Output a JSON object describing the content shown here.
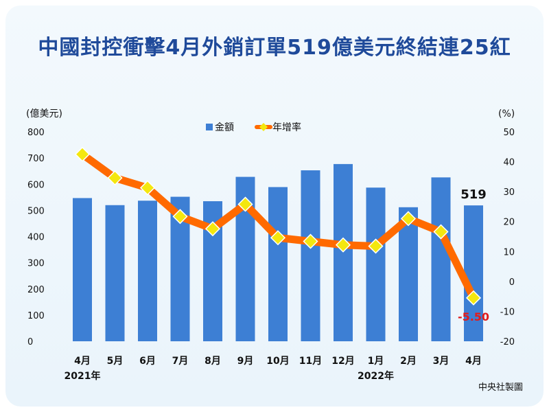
{
  "title": "中國封控衝擊4月外銷訂單519億美元終結連25紅",
  "credit": "中央社製圖",
  "chart_data": {
    "type": "bar+line",
    "categories": [
      "4月",
      "5月",
      "6月",
      "7月",
      "8月",
      "9月",
      "10月",
      "11月",
      "12月",
      "1月",
      "2月",
      "3月",
      "4月"
    ],
    "year_labels": [
      {
        "index": 0,
        "label": "2021年"
      },
      {
        "index": 9,
        "label": "2022年"
      }
    ],
    "left_axis": {
      "unit": "(億美元)",
      "ylim": [
        0,
        800
      ],
      "ticks": [
        0,
        100,
        200,
        300,
        400,
        500,
        600,
        700,
        800
      ]
    },
    "right_axis": {
      "unit": "(%)",
      "ylim": [
        -20,
        50
      ],
      "ticks": [
        -20,
        -10,
        0,
        10,
        20,
        30,
        40,
        50
      ]
    },
    "series": [
      {
        "name": "金額",
        "axis": "left",
        "kind": "bar",
        "color": "#3d7fd4",
        "values": [
          547,
          520,
          537,
          552,
          535,
          628,
          589,
          653,
          677,
          587,
          512,
          626,
          519
        ]
      },
      {
        "name": "年增率",
        "axis": "right",
        "kind": "line",
        "color": "#ff6a00",
        "marker_color": "#f4e70f",
        "values": [
          42.5,
          34.6,
          31.3,
          21.7,
          17.6,
          25.8,
          14.6,
          13.4,
          12.2,
          11.8,
          21.0,
          16.6,
          -5.5
        ]
      }
    ],
    "annotations": [
      {
        "text": "519",
        "index": 12,
        "series": "金額",
        "color": "#111111"
      },
      {
        "text": "-5.50",
        "index": 12,
        "series": "年增率",
        "color": "#e21b1b"
      }
    ],
    "legend_position": "top-center",
    "grid": false
  }
}
